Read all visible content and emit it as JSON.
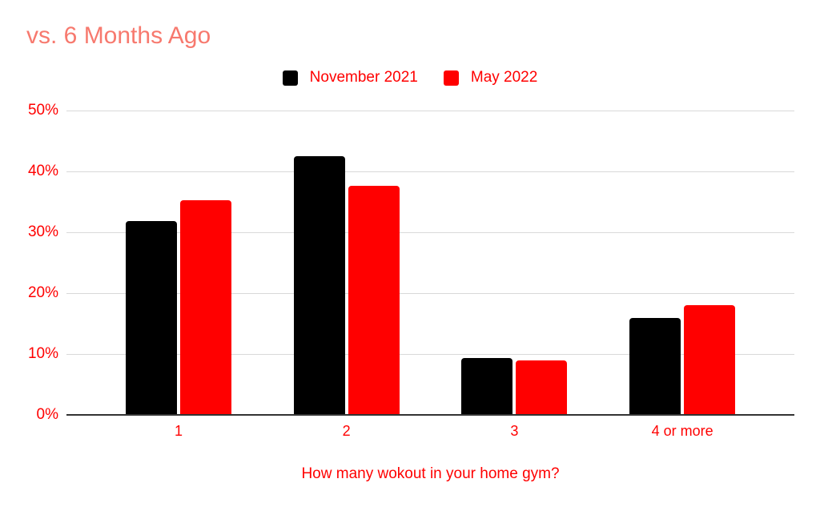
{
  "title": "vs. 6 Months Ago",
  "colors": {
    "title_text": "#f7796e",
    "axis_text": "#ff0000",
    "legend_text": "#ff0000",
    "gridline": "#d9d9d9",
    "axis_line": "#333333",
    "background": "#ffffff"
  },
  "chart_data": {
    "type": "bar",
    "title": "vs. 6 Months Ago",
    "categories": [
      "1",
      "2",
      "3",
      "4 or more"
    ],
    "series": [
      {
        "name": "November 2021",
        "color": "#000000",
        "values": [
          31.8,
          42.5,
          9.4,
          15.9
        ]
      },
      {
        "name": "May 2022",
        "color": "#ff0000",
        "values": [
          35.2,
          37.6,
          8.9,
          18.0
        ]
      }
    ],
    "xlabel": "How many wokout in your home gym?",
    "ylabel": "",
    "ylim": [
      0,
      50
    ],
    "ytick_step": 10,
    "yticks": [
      "0%",
      "10%",
      "20%",
      "30%",
      "40%",
      "50%"
    ],
    "grid": true,
    "legend_position": "top-center"
  }
}
